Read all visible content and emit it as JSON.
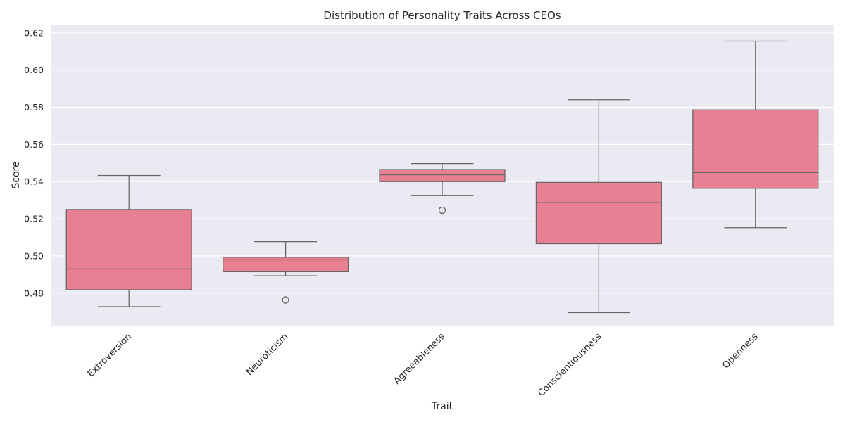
{
  "chart_data": {
    "type": "box",
    "title": "Distribution of Personality Traits Across CEOs",
    "xlabel": "Trait",
    "ylabel": "Score",
    "ylim": [
      0.4625,
      0.6245
    ],
    "yticks": [
      0.48,
      0.5,
      0.52,
      0.54,
      0.56,
      0.58,
      0.6,
      0.62
    ],
    "ytick_labels": [
      "0.48",
      "0.50",
      "0.52",
      "0.54",
      "0.56",
      "0.58",
      "0.60",
      "0.62"
    ],
    "grid": true,
    "box_color": "#e87f92",
    "line_color": "#676767",
    "background": "#eaeaf2",
    "categories": [
      "Extroversion",
      "Neuroticism",
      "Agreeableness",
      "Conscientiousness",
      "Openness"
    ],
    "boxes": [
      {
        "whisker_low": 0.4727,
        "q1": 0.4818,
        "median": 0.493,
        "q3": 0.525,
        "whisker_high": 0.5433,
        "outliers": []
      },
      {
        "whisker_low": 0.4893,
        "q1": 0.4915,
        "median": 0.4979,
        "q3": 0.4993,
        "whisker_high": 0.5077,
        "outliers": [
          0.4763
        ]
      },
      {
        "whisker_low": 0.5326,
        "q1": 0.54,
        "median": 0.5437,
        "q3": 0.5465,
        "whisker_high": 0.5497,
        "outliers": [
          0.5246
        ]
      },
      {
        "whisker_low": 0.4695,
        "q1": 0.5066,
        "median": 0.5287,
        "q3": 0.5396,
        "whisker_high": 0.5841,
        "outliers": []
      },
      {
        "whisker_low": 0.5152,
        "q1": 0.5364,
        "median": 0.5449,
        "q3": 0.5786,
        "whisker_high": 0.6156,
        "outliers": []
      }
    ]
  }
}
